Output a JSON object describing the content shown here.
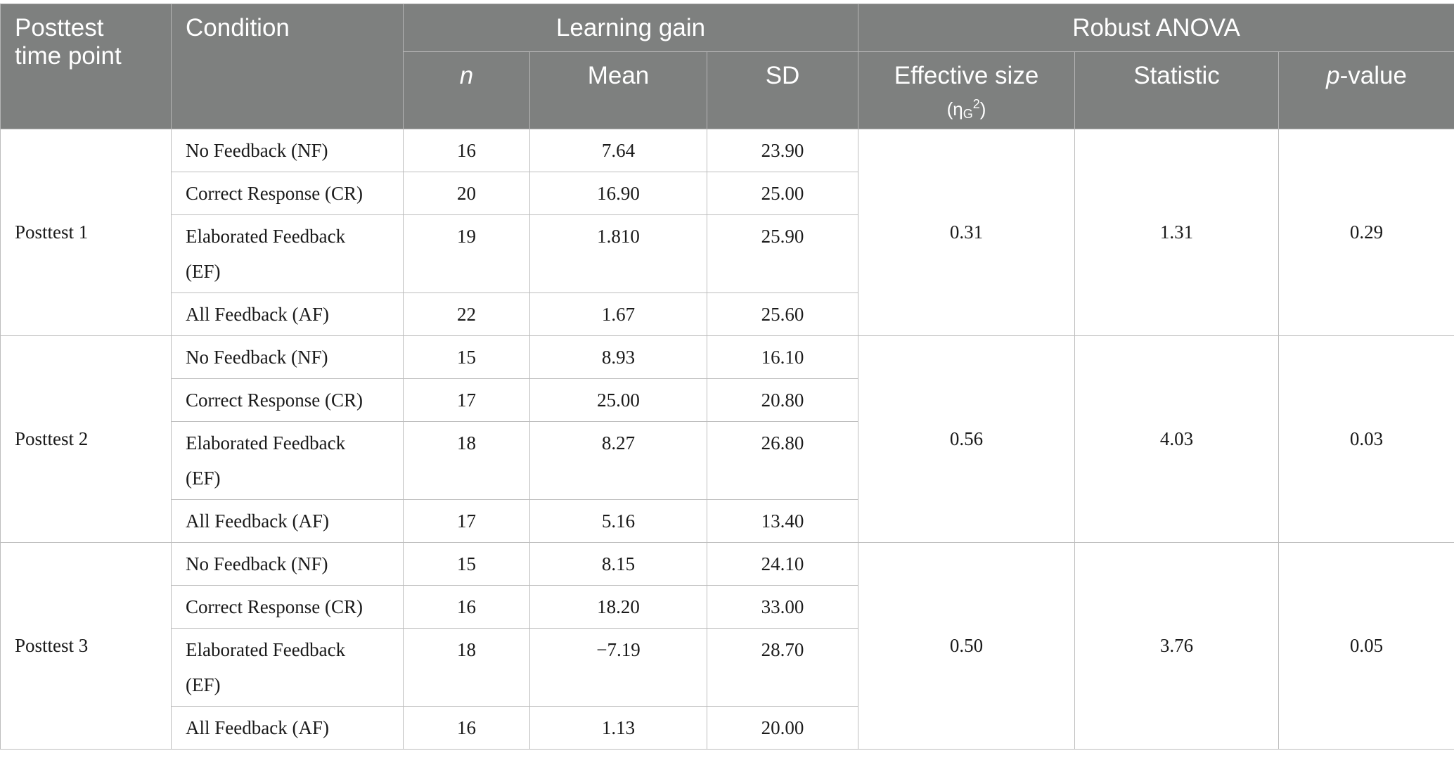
{
  "header": {
    "time_point_line1": "Posttest",
    "time_point_line2": "time point",
    "condition": "Condition",
    "learning_gain": "Learning gain",
    "robust_anova": "Robust ANOVA",
    "n": "n",
    "mean": "Mean",
    "sd": "SD",
    "effect_size_label": "Effective size",
    "effect_size_symbol": "η",
    "effect_size_sub": "G",
    "effect_size_sup": "2",
    "statistic": "Statistic",
    "p_italic": "p",
    "p_rest": "-value"
  },
  "groups": [
    {
      "time_point": "Posttest 1",
      "effect_size": "0.31",
      "statistic": "1.31",
      "p_value": "0.29",
      "rows": [
        {
          "condition": "No Feedback (NF)",
          "n": "16",
          "mean": "7.64",
          "sd": "23.90"
        },
        {
          "condition": "Correct Response (CR)",
          "n": "20",
          "mean": "16.90",
          "sd": "25.00"
        },
        {
          "condition_line1": "Elaborated Feedback",
          "condition_line2": "(EF)",
          "n": "19",
          "mean": "1.810",
          "sd": "25.90"
        },
        {
          "condition": "All Feedback (AF)",
          "n": "22",
          "mean": "1.67",
          "sd": "25.60"
        }
      ]
    },
    {
      "time_point": "Posttest 2",
      "effect_size": "0.56",
      "statistic": "4.03",
      "p_value": "0.03",
      "rows": [
        {
          "condition": "No Feedback (NF)",
          "n": "15",
          "mean": "8.93",
          "sd": "16.10"
        },
        {
          "condition": "Correct Response (CR)",
          "n": "17",
          "mean": "25.00",
          "sd": "20.80"
        },
        {
          "condition_line1": "Elaborated Feedback",
          "condition_line2": "(EF)",
          "n": "18",
          "mean": "8.27",
          "sd": "26.80"
        },
        {
          "condition": "All Feedback (AF)",
          "n": "17",
          "mean": "5.16",
          "sd": "13.40"
        }
      ]
    },
    {
      "time_point": "Posttest 3",
      "effect_size": "0.50",
      "statistic": "3.76",
      "p_value": "0.05",
      "rows": [
        {
          "condition": "No Feedback (NF)",
          "n": "15",
          "mean": "8.15",
          "sd": "24.10"
        },
        {
          "condition": "Correct Response (CR)",
          "n": "16",
          "mean": "18.20",
          "sd": "33.00"
        },
        {
          "condition_line1": "Elaborated Feedback",
          "condition_line2": "(EF)",
          "n": "18",
          "mean": "−7.19",
          "sd": "28.70"
        },
        {
          "condition": "All Feedback (AF)",
          "n": "16",
          "mean": "1.13",
          "sd": "20.00"
        }
      ]
    }
  ]
}
